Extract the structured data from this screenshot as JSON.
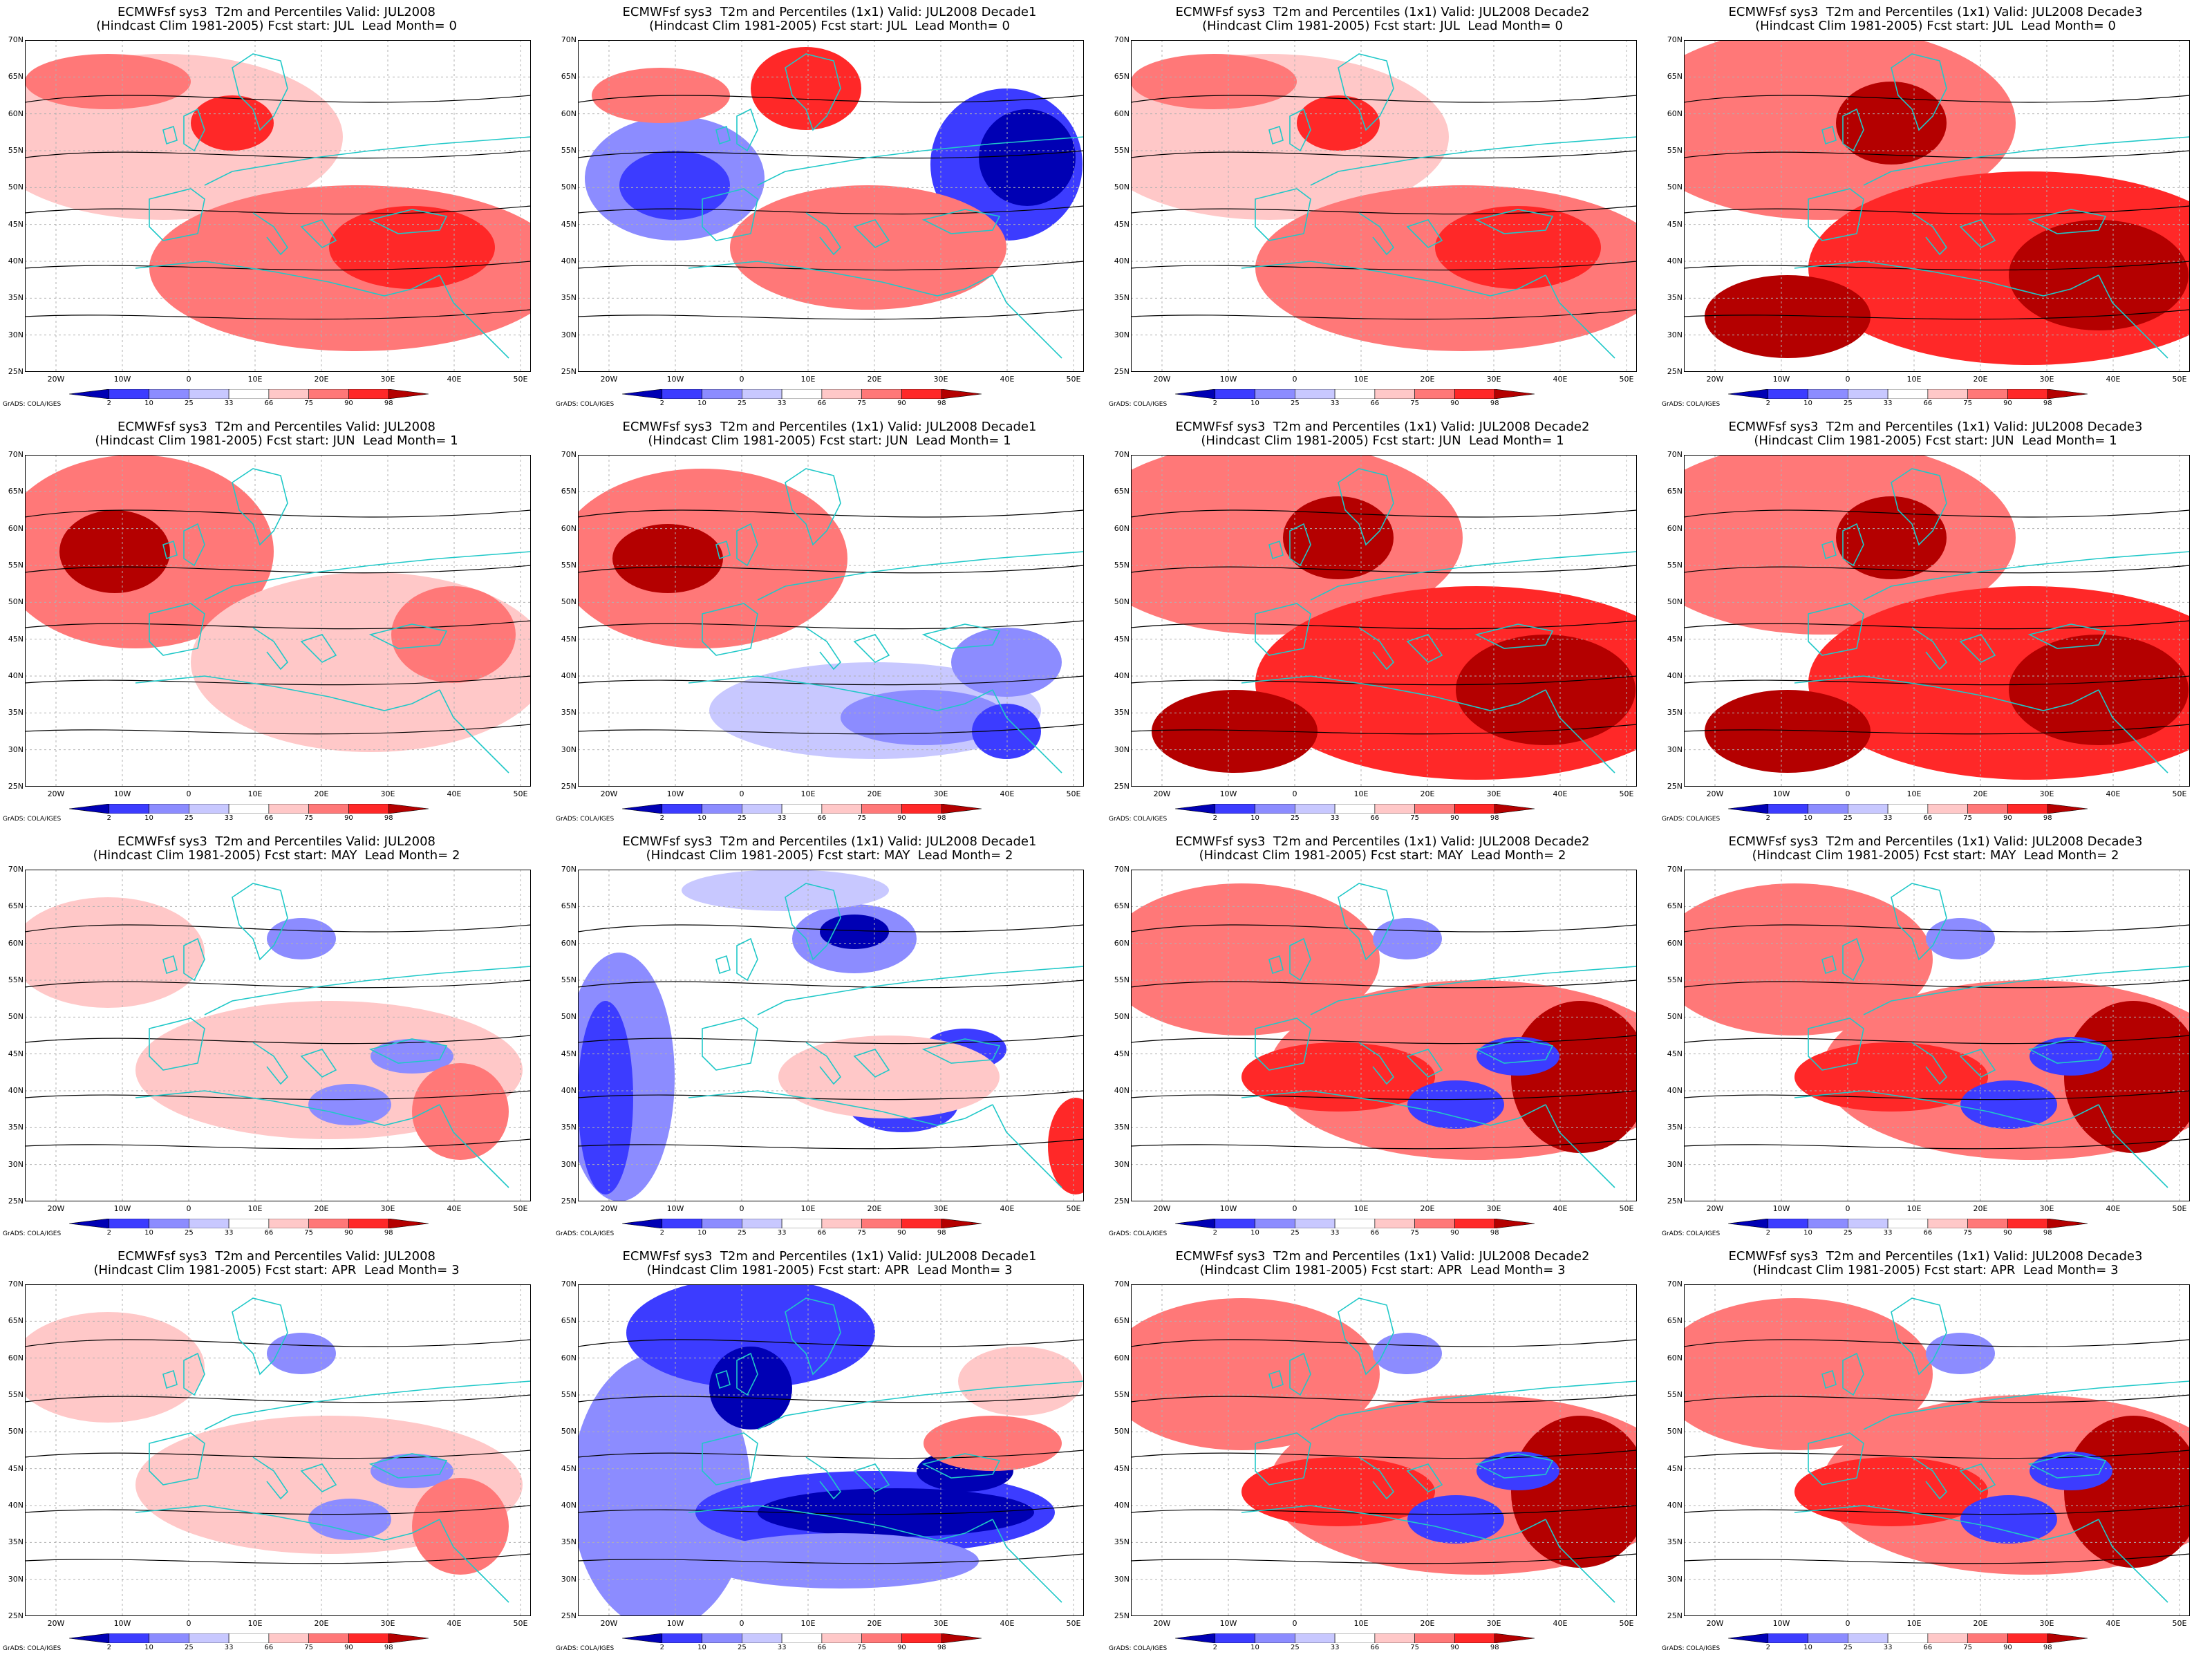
{
  "panels": [
    {
      "title1": "ECMWFsf sys3  T2m and Percentiles Valid: JUL2008",
      "title2": "(Hindcast Clim 1981-2005) Fcst start: JUL  Lead Month= 0",
      "pattern": "warm"
    },
    {
      "title1": "ECMWFsf sys3  T2m and Percentiles (1x1) Valid: JUL2008 Decade1",
      "title2": "(Hindcast Clim 1981-2005) Fcst start: JUL  Lead Month= 0",
      "pattern": "mixed-west-cold"
    },
    {
      "title1": "ECMWFsf sys3  T2m and Percentiles (1x1) Valid: JUL2008 Decade2",
      "title2": "(Hindcast Clim 1981-2005) Fcst start: JUL  Lead Month= 0",
      "pattern": "warm"
    },
    {
      "title1": "ECMWFsf sys3  T2m and Percentiles (1x1) Valid: JUL2008 Decade3",
      "title2": "(Hindcast Clim 1981-2005) Fcst start: JUL  Lead Month= 0",
      "pattern": "hot"
    },
    {
      "title1": "ECMWFsf sys3  T2m and Percentiles Valid: JUL2008",
      "title2": "(Hindcast Clim 1981-2005) Fcst start: JUN  Lead Month= 1",
      "pattern": "warm-north"
    },
    {
      "title1": "ECMWFsf sys3  T2m and Percentiles (1x1) Valid: JUL2008 Decade1",
      "title2": "(Hindcast Clim 1981-2005) Fcst start: JUN  Lead Month= 1",
      "pattern": "warm-north-cold-south"
    },
    {
      "title1": "ECMWFsf sys3  T2m and Percentiles (1x1) Valid: JUL2008 Decade2",
      "title2": "(Hindcast Clim 1981-2005) Fcst start: JUN  Lead Month= 1",
      "pattern": "hot"
    },
    {
      "title1": "ECMWFsf sys3  T2m and Percentiles (1x1) Valid: JUL2008 Decade3",
      "title2": "(Hindcast Clim 1981-2005) Fcst start: JUN  Lead Month= 1",
      "pattern": "hot"
    },
    {
      "title1": "ECMWFsf sys3  T2m and Percentiles Valid: JUL2008",
      "title2": "(Hindcast Clim 1981-2005) Fcst start: MAY  Lead Month= 2",
      "pattern": "seas-cold"
    },
    {
      "title1": "ECMWFsf sys3  T2m and Percentiles (1x1) Valid: JUL2008 Decade1",
      "title2": "(Hindcast Clim 1981-2005) Fcst start: MAY  Lead Month= 2",
      "pattern": "cold-west-seas"
    },
    {
      "title1": "ECMWFsf sys3  T2m and Percentiles (1x1) Valid: JUL2008 Decade2",
      "title2": "(Hindcast Clim 1981-2005) Fcst start: MAY  Lead Month= 2",
      "pattern": "seas-cold-hot"
    },
    {
      "title1": "ECMWFsf sys3  T2m and Percentiles (1x1) Valid: JUL2008 Decade3",
      "title2": "(Hindcast Clim 1981-2005) Fcst start: MAY  Lead Month= 2",
      "pattern": "seas-cold-hot"
    },
    {
      "title1": "ECMWFsf sys3  T2m and Percentiles Valid: JUL2008",
      "title2": "(Hindcast Clim 1981-2005) Fcst start: APR  Lead Month= 3",
      "pattern": "seas-cold"
    },
    {
      "title1": "ECMWFsf sys3  T2m and Percentiles (1x1) Valid: JUL2008 Decade1",
      "title2": "(Hindcast Clim 1981-2005) Fcst start: APR  Lead Month= 3",
      "pattern": "very-cold"
    },
    {
      "title1": "ECMWFsf sys3  T2m and Percentiles (1x1) Valid: JUL2008 Decade2",
      "title2": "(Hindcast Clim 1981-2005) Fcst start: APR  Lead Month= 3",
      "pattern": "seas-cold-hot"
    },
    {
      "title1": "ECMWFsf sys3  T2m and Percentiles (1x1) Valid: JUL2008 Decade3",
      "title2": "(Hindcast Clim 1981-2005) Fcst start: APR  Lead Month= 3",
      "pattern": "seas-cold-hot"
    }
  ],
  "lat_labels": [
    "70N",
    "65N",
    "60N",
    "55N",
    "50N",
    "45N",
    "40N",
    "35N",
    "30N",
    "25N"
  ],
  "lon_labels": [
    "20W",
    "10W",
    "0",
    "10E",
    "20E",
    "30E",
    "40E",
    "50E"
  ],
  "colorbar": {
    "labels": [
      "2",
      "10",
      "25",
      "33",
      "66",
      "75",
      "90",
      "98"
    ],
    "colors": [
      "#0000b4",
      "#3c3cff",
      "#8c8cff",
      "#c8c8ff",
      "#ffffff",
      "#ffc8c8",
      "#ff7878",
      "#ff2828",
      "#b40000"
    ]
  },
  "credit": "GrADS: COLA/IGES"
}
